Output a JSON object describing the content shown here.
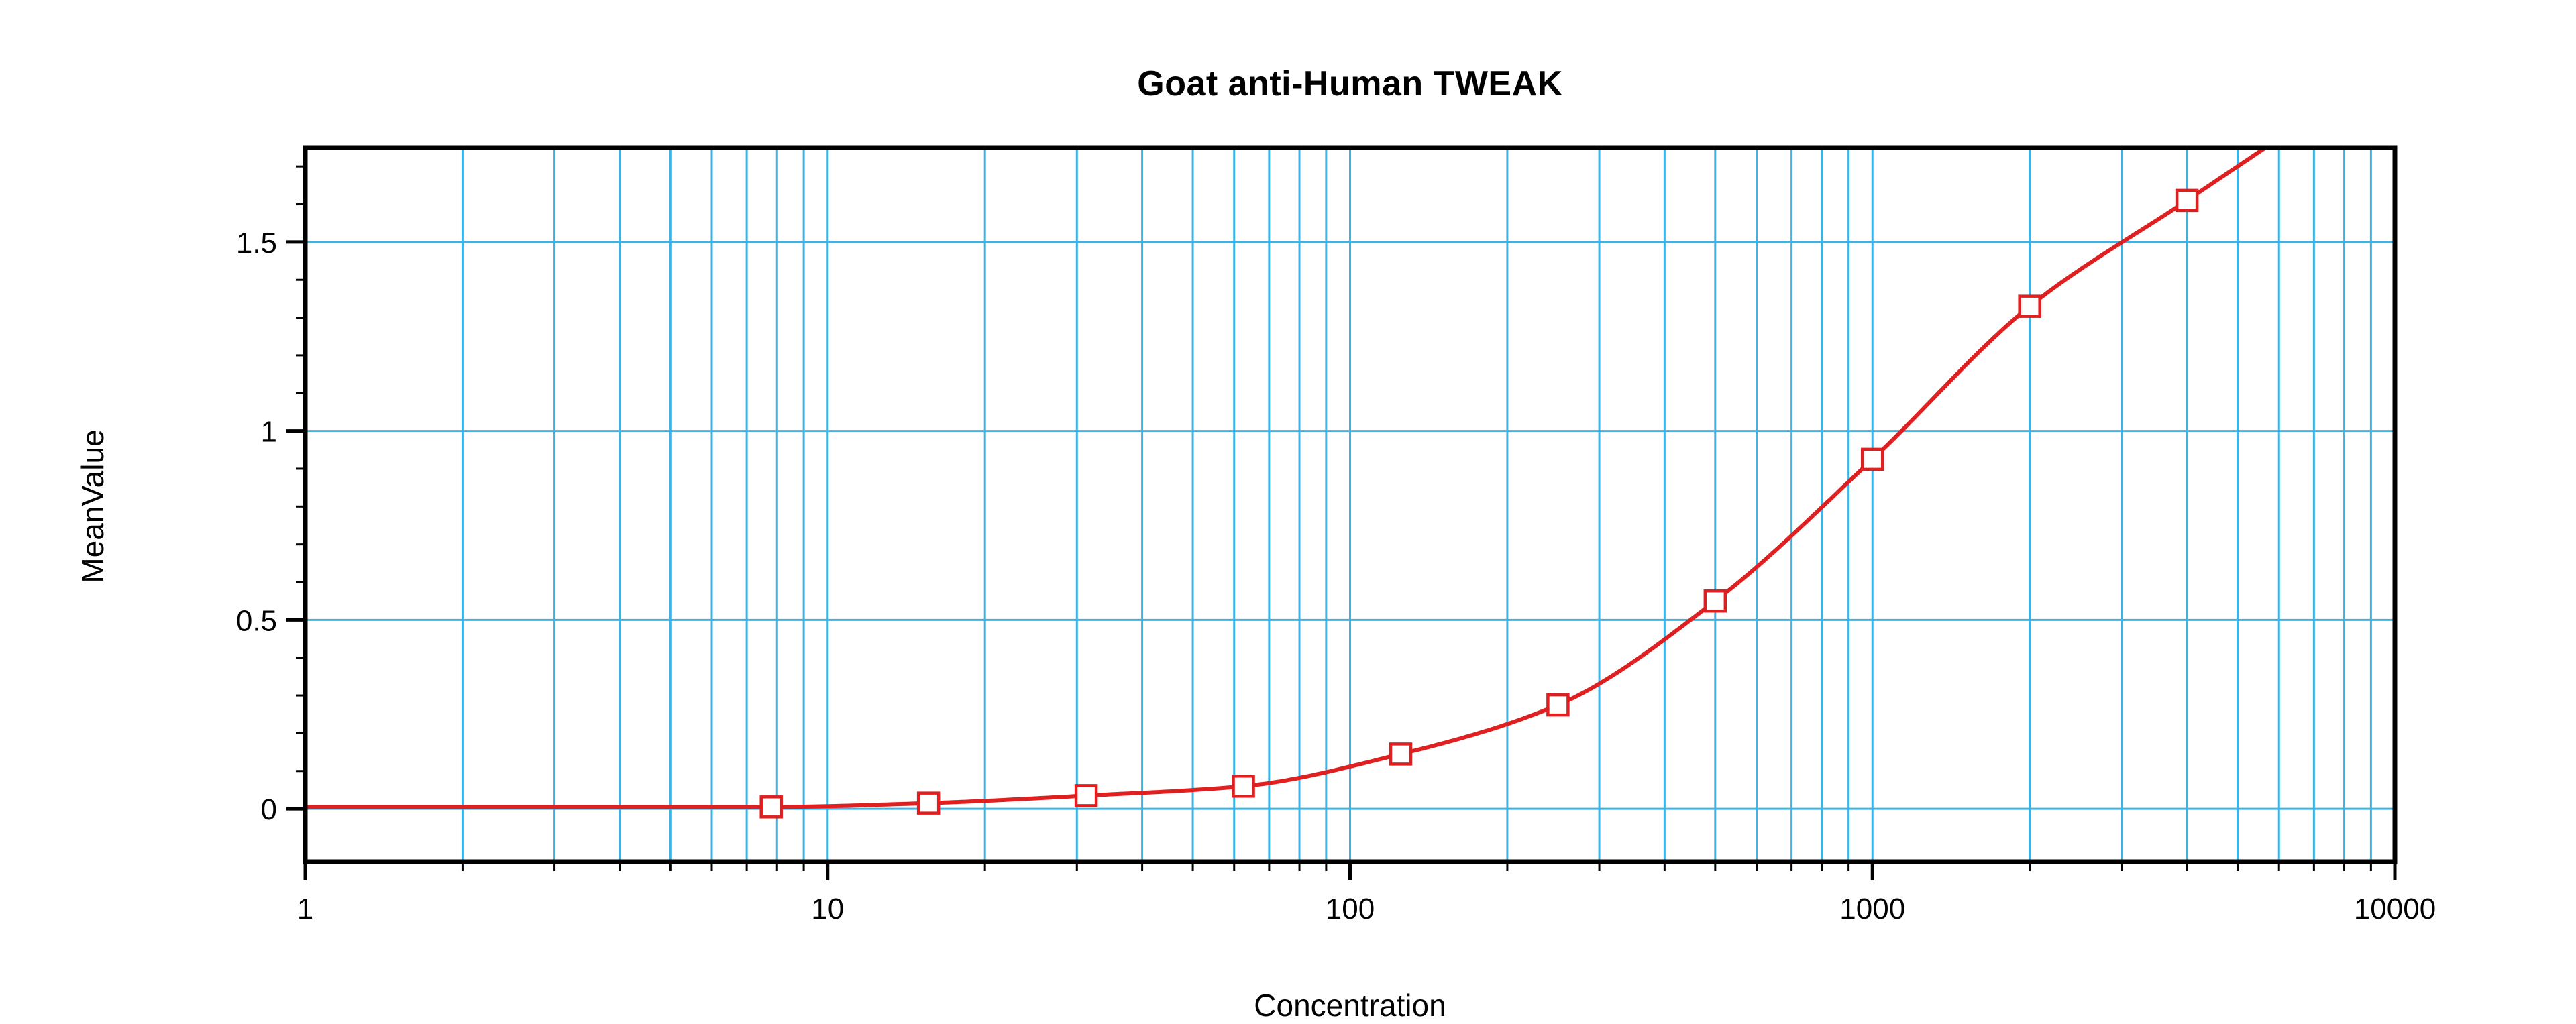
{
  "chart_data": {
    "type": "line",
    "title": "Goat anti-Human TWEAK",
    "xlabel": "Concentration",
    "ylabel": "MeanValue",
    "x_scale": "log",
    "xlim": [
      1,
      10000
    ],
    "ylim": [
      -0.14,
      1.75
    ],
    "x_ticks": [
      1,
      10,
      100,
      1000,
      10000
    ],
    "x_tick_labels": [
      "1",
      "10",
      "100",
      "1000",
      "10000"
    ],
    "y_ticks": [
      0,
      0.5,
      1,
      1.5
    ],
    "y_tick_labels": [
      "0",
      "0.5",
      "1",
      "1.5"
    ],
    "grid": true,
    "legend": "none",
    "grid_color": "#3ab4e7",
    "line_color": "#e02020",
    "marker": "open-square",
    "marker_color": "#e02020",
    "series": [
      {
        "name": "standard-curve",
        "x": [
          7.8,
          15.6,
          31.25,
          62.5,
          125,
          250,
          500,
          1000,
          2000,
          4000
        ],
        "y": [
          0.005,
          0.015,
          0.035,
          0.06,
          0.145,
          0.275,
          0.55,
          0.925,
          1.33,
          1.61
        ]
      }
    ]
  }
}
